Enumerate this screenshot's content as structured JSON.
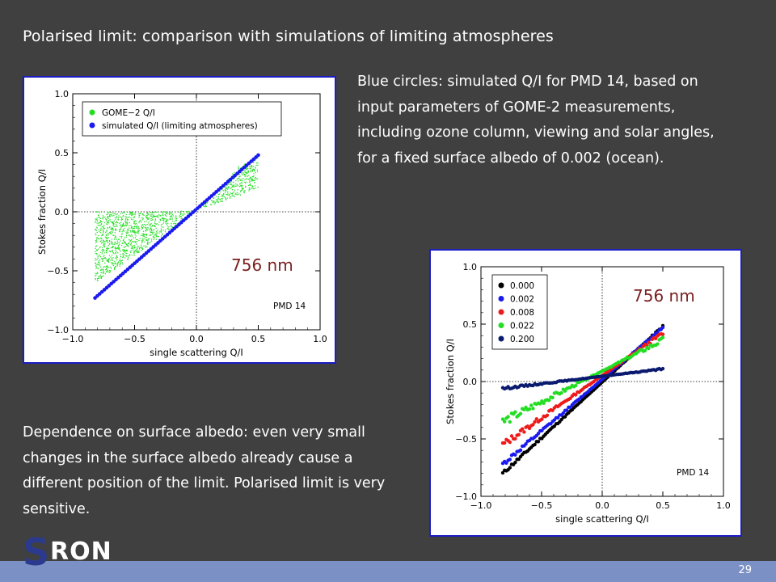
{
  "slide": {
    "title": "Polarised limit: comparison with simulations of limiting atmospheres",
    "para1": "Blue circles: simulated Q/I for PMD 14, based on input parameters of GOME-2 measurements, including ozone column, viewing and solar angles, for a fixed surface albedo of 0.002 (ocean).",
    "para2": "Dependence on surface albedo: even very small changes in the surface albedo already cause a different position of the limit. Polarised limit is very sensitive.",
    "page_number": "29",
    "logo": {
      "letter": "S",
      "rest": "RON"
    }
  },
  "colors": {
    "background": "#404040",
    "footer": "#7b90c4",
    "frame": "#1d1dc4",
    "annotation": "#7a1f1f"
  },
  "chart_data": [
    {
      "type": "scatter",
      "title": "",
      "xlabel": "single scattering Q/I",
      "ylabel": "Stokes fraction Q/I",
      "xlim": [
        -1.0,
        1.0
      ],
      "ylim": [
        -1.0,
        1.0
      ],
      "xticks": [
        "−1.0",
        "−0.5",
        "0.0",
        "0.5",
        "1.0"
      ],
      "yticks": [
        "−1.0",
        "−0.5",
        "0.0",
        "0.5",
        "1.0"
      ],
      "legend_position": "top-left",
      "annotations": [
        "756 nm",
        "PMD 14"
      ],
      "series": [
        {
          "name": "GOME−2 Q/I",
          "color": "#22dd22",
          "kind": "cloud",
          "x": [
            -0.82,
            -0.82,
            -0.6,
            -0.3,
            0.0,
            0.05,
            0.2,
            0.35,
            0.5,
            0.5,
            0.2,
            0.0,
            -0.3,
            -0.6
          ],
          "y": [
            0.0,
            -0.6,
            -0.45,
            -0.22,
            0.0,
            0.05,
            0.22,
            0.4,
            0.46,
            0.2,
            0.08,
            0.01,
            0.0,
            0.0
          ]
        },
        {
          "name": "simulated Q/I (limiting atmospheres)",
          "color": "#1a1aee",
          "kind": "line",
          "x": [
            -0.82,
            0.5
          ],
          "y": [
            -0.73,
            0.48
          ]
        }
      ]
    },
    {
      "type": "scatter",
      "title": "",
      "xlabel": "single scattering Q/I",
      "ylabel": "Stokes fraction Q/I",
      "xlim": [
        -1.0,
        1.0
      ],
      "ylim": [
        -1.0,
        1.0
      ],
      "xticks": [
        "−1.0",
        "−0.5",
        "0.0",
        "0.5",
        "1.0"
      ],
      "yticks": [
        "−1.0",
        "−0.5",
        "0.0",
        "0.5",
        "1.0"
      ],
      "legend_position": "top-left",
      "annotations": [
        "756 nm",
        "PMD 14"
      ],
      "series": [
        {
          "name": "0.000",
          "color": "#000000",
          "x": [
            -0.82,
            0.5
          ],
          "y": [
            -0.8,
            0.48
          ],
          "spread": 0.03
        },
        {
          "name": "0.002",
          "color": "#1a1aee",
          "x": [
            -0.82,
            0.5
          ],
          "y": [
            -0.72,
            0.47
          ],
          "spread": 0.04
        },
        {
          "name": "0.008",
          "color": "#ee1a1a",
          "x": [
            -0.82,
            0.5
          ],
          "y": [
            -0.55,
            0.42
          ],
          "spread": 0.06
        },
        {
          "name": "0.022",
          "color": "#22dd22",
          "x": [
            -0.82,
            0.5
          ],
          "y": [
            -0.35,
            0.36
          ],
          "spread": 0.08
        },
        {
          "name": "0.200",
          "color": "#0a1a6e",
          "x": [
            -0.82,
            0.5
          ],
          "y": [
            -0.06,
            0.11
          ],
          "spread": 0.02
        }
      ]
    }
  ]
}
